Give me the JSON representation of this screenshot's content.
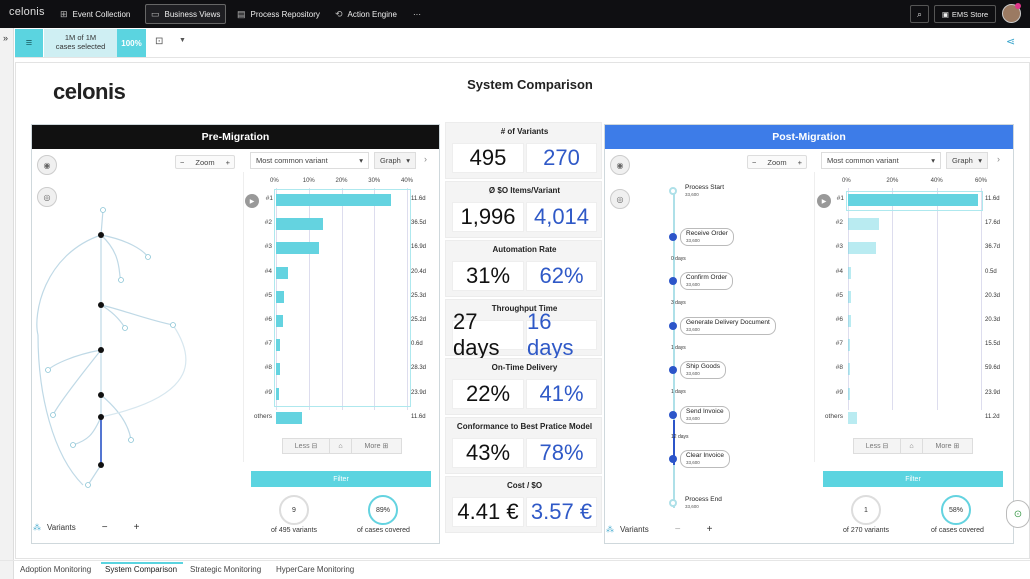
{
  "topnav": {
    "logo": "celonis",
    "items": [
      {
        "label": "Event Collection",
        "icon": "event-collection-icon"
      },
      {
        "label": "Business Views",
        "icon": "business-views-icon",
        "active": true
      },
      {
        "label": "Process Repository",
        "icon": "process-repository-icon"
      },
      {
        "label": "Action Engine",
        "icon": "action-engine-icon"
      }
    ],
    "more": "···",
    "store_label": "EMS Store"
  },
  "subbar": {
    "cases_line1": "1M of 1M",
    "cases_line2": "cases selected",
    "percent": "100%"
  },
  "brand": "celonis",
  "page_title": "System Comparison",
  "pre": {
    "title": "Pre-Migration",
    "zoom_label": "Zoom",
    "variant_select": "Most common variant",
    "view_select": "Graph",
    "variants_label": "Variants",
    "less_label": "Less",
    "more_label": "More",
    "filter_label": "Filter",
    "kpi1_value": "9",
    "kpi1_caption": "of 495 variants",
    "kpi2_value": "89%",
    "kpi2_caption": "of cases covered",
    "ticks": [
      "0%",
      "10%",
      "20%",
      "30%",
      "40%"
    ],
    "variants": [
      {
        "label": "#1",
        "share": 0.88,
        "duration": "11.6d"
      },
      {
        "label": "#2",
        "share": 0.36,
        "duration": "36.5d"
      },
      {
        "label": "#3",
        "share": 0.33,
        "duration": "16.9d"
      },
      {
        "label": "#4",
        "share": 0.09,
        "duration": "20.4d"
      },
      {
        "label": "#5",
        "share": 0.06,
        "duration": "25.3d"
      },
      {
        "label": "#6",
        "share": 0.05,
        "duration": "25.2d"
      },
      {
        "label": "#7",
        "share": 0.03,
        "duration": "0.6d"
      },
      {
        "label": "#8",
        "share": 0.03,
        "duration": "28.3d"
      },
      {
        "label": "#9",
        "share": 0.02,
        "duration": "23.9d"
      },
      {
        "label": "others",
        "share": 0.2,
        "duration": "11.6d"
      }
    ]
  },
  "post": {
    "title": "Post-Migration",
    "zoom_label": "Zoom",
    "variant_select": "Most common variant",
    "view_select": "Graph",
    "variants_label": "Variants",
    "less_label": "Less",
    "more_label": "More",
    "filter_label": "Filter",
    "kpi1_value": "1",
    "kpi1_caption": "of 270 variants",
    "kpi2_value": "58%",
    "kpi2_caption": "of cases covered",
    "ticks": [
      "0%",
      "20%",
      "40%",
      "60%"
    ],
    "variants": [
      {
        "label": "#1",
        "share": 0.98,
        "duration": "11.6d"
      },
      {
        "label": "#2",
        "share": 0.23,
        "duration": "17.6d"
      },
      {
        "label": "#3",
        "share": 0.21,
        "duration": "36.7d"
      },
      {
        "label": "#4",
        "share": 0.02,
        "duration": "0.5d"
      },
      {
        "label": "#5",
        "share": 0.02,
        "duration": "20.3d"
      },
      {
        "label": "#6",
        "share": 0.02,
        "duration": "20.3d"
      },
      {
        "label": "#7",
        "share": 0.01,
        "duration": "15.5d"
      },
      {
        "label": "#8",
        "share": 0.01,
        "duration": "59.6d"
      },
      {
        "label": "#9",
        "share": 0.01,
        "duration": "23.9d"
      },
      {
        "label": "others",
        "share": 0.07,
        "duration": "11.2d"
      }
    ],
    "process": [
      {
        "name": "Process Start",
        "count": "33,600"
      },
      {
        "name": "Receive Order",
        "count": "33,600"
      },
      {
        "name": "Confirm Order",
        "count": "33,600"
      },
      {
        "name": "Generate Delivery Document",
        "count": "33,600"
      },
      {
        "name": "Ship Goods",
        "count": "33,600"
      },
      {
        "name": "Send Invoice",
        "count": "33,600"
      },
      {
        "name": "Clear Invoice",
        "count": "33,600"
      },
      {
        "name": "Process End",
        "count": "33,600"
      }
    ],
    "edges": [
      "0 days",
      "3 days",
      "1 days",
      "1 days",
      "12 days"
    ]
  },
  "metrics": [
    {
      "title": "# of Variants",
      "pre": "495",
      "post": "270"
    },
    {
      "title": "Ø $O Items/Variant",
      "pre": "1,996",
      "post": "4,014"
    },
    {
      "title": "Automation Rate",
      "pre": "31%",
      "post": "62%"
    },
    {
      "title": "Throughput Time",
      "pre": "27 days",
      "post": "16 days"
    },
    {
      "title": "On-Time Delivery",
      "pre": "22%",
      "post": "41%"
    },
    {
      "title": "Conformance to Best Pratice Model",
      "pre": "43%",
      "post": "78%"
    },
    {
      "title": "Cost / $O",
      "pre": "4.41 €",
      "post": "3.57 €"
    }
  ],
  "colors": {
    "accent": "#64d3e0",
    "post_header": "#3d7ce8",
    "pre_header": "#111111",
    "post_value": "#2f59c7"
  },
  "tabs": [
    "Adoption Monitoring",
    "System Comparison",
    "Strategic Monitoring",
    "HyperCare Monitoring"
  ]
}
